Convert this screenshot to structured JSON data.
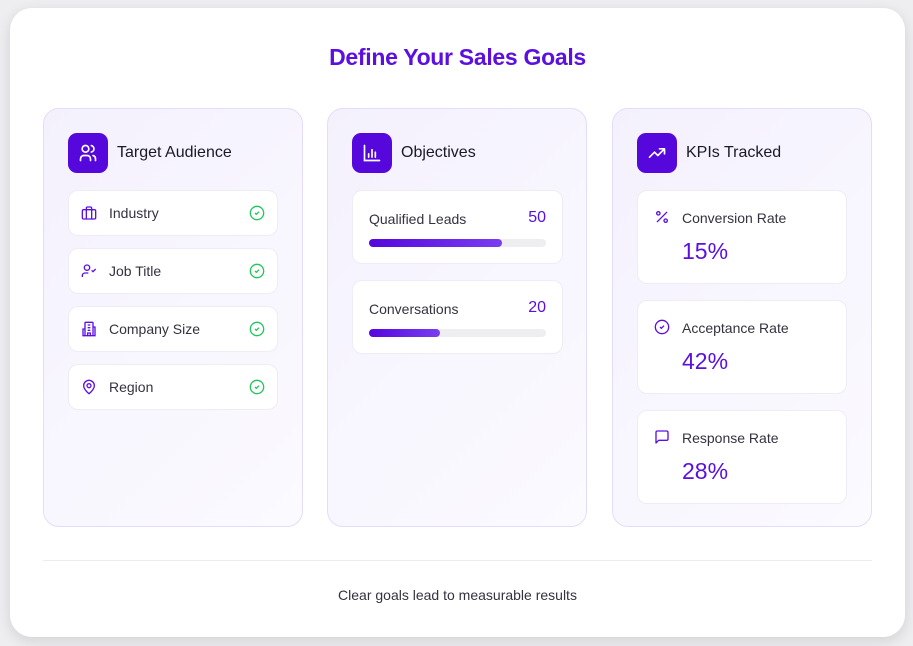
{
  "title": "Define Your Sales Goals",
  "colors": {
    "accent": "#5b10e0",
    "check": "#22c55e"
  },
  "audience": {
    "heading": "Target Audience",
    "icon": "users-icon",
    "items": [
      {
        "label": "Industry",
        "icon": "briefcase-icon",
        "checked": true
      },
      {
        "label": "Job Title",
        "icon": "user-check-icon",
        "checked": true
      },
      {
        "label": "Company Size",
        "icon": "building-icon",
        "checked": true
      },
      {
        "label": "Region",
        "icon": "map-pin-icon",
        "checked": true
      }
    ]
  },
  "objectives": {
    "heading": "Objectives",
    "icon": "bar-chart-icon",
    "items": [
      {
        "label": "Qualified Leads",
        "value": "50",
        "progress_percent": 75
      },
      {
        "label": "Conversations",
        "value": "20",
        "progress_percent": 40
      }
    ]
  },
  "kpis": {
    "heading": "KPIs Tracked",
    "icon": "trending-up-icon",
    "items": [
      {
        "label": "Conversion Rate",
        "value": "15%",
        "icon": "percent-icon"
      },
      {
        "label": "Acceptance Rate",
        "value": "42%",
        "icon": "check-circle-icon"
      },
      {
        "label": "Response Rate",
        "value": "28%",
        "icon": "message-square-icon"
      }
    ]
  },
  "footer": "Clear goals lead to measurable results"
}
